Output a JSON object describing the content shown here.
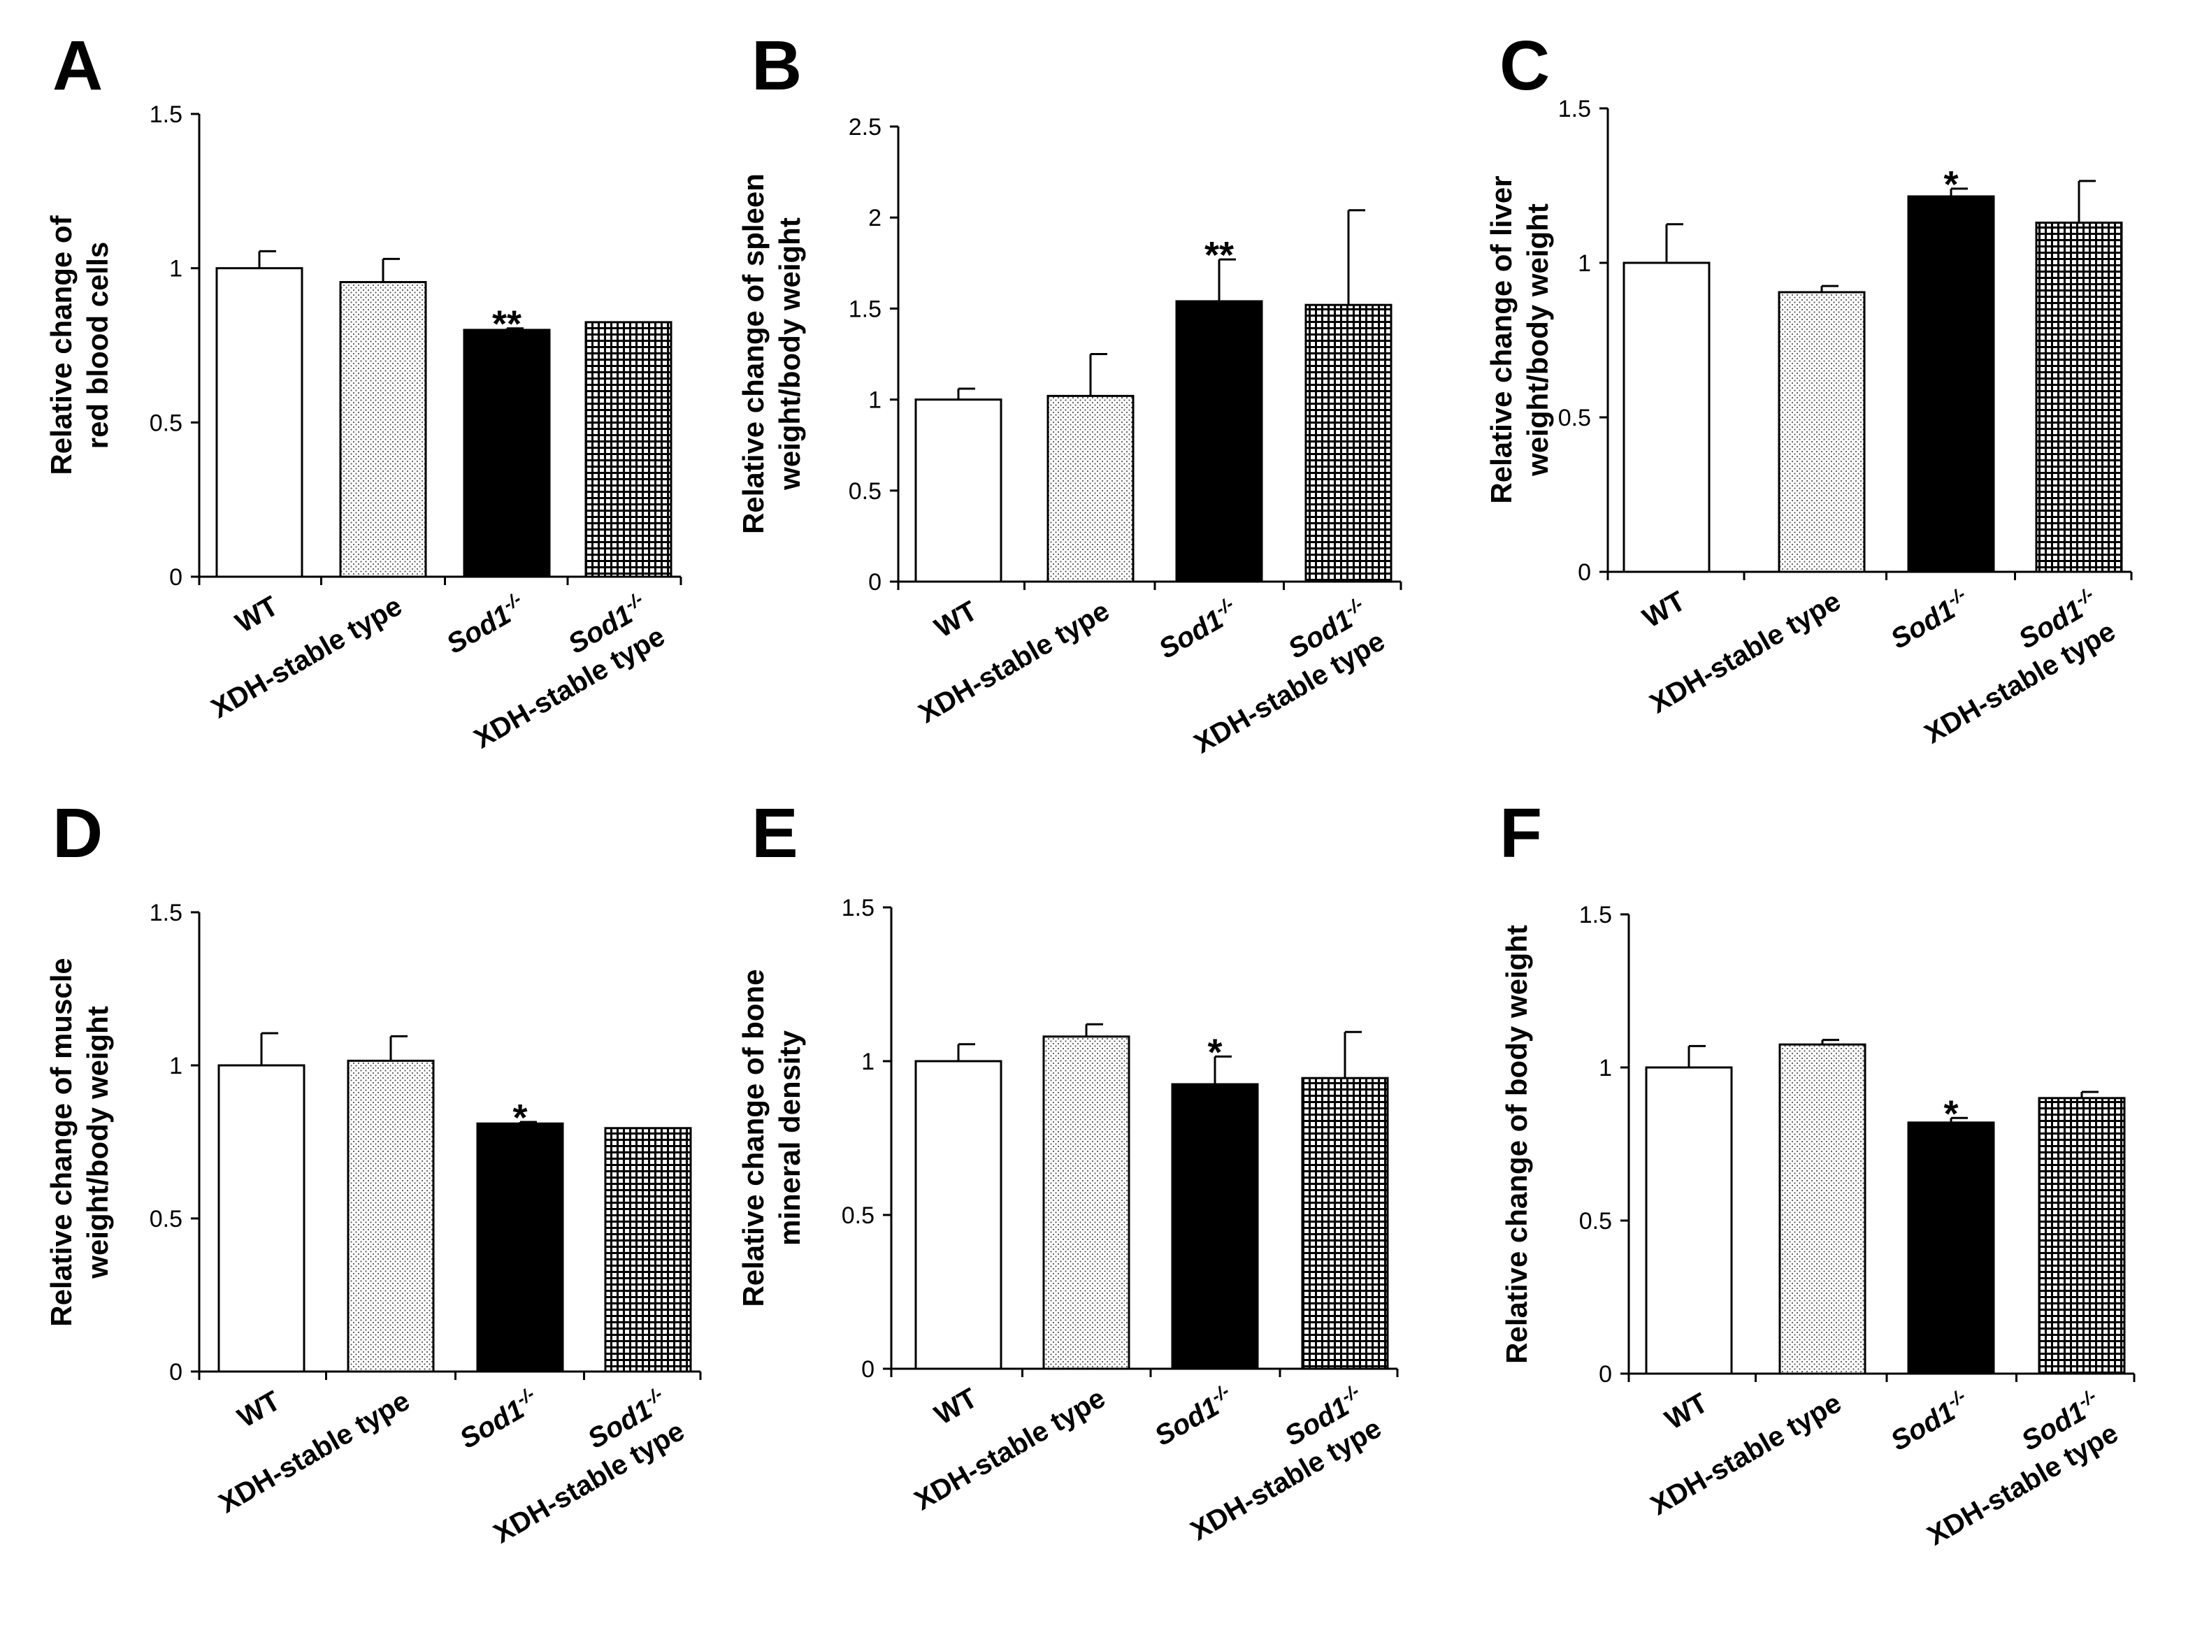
{
  "chart_data": [
    {
      "type": "bar",
      "panel": "A",
      "title": "",
      "ylabel": [
        "Relative change of",
        "red blood cells"
      ],
      "categories": [
        "WT",
        "XDH-stable type",
        "Sod1-/-",
        "Sod1-/- XDH-stable type"
      ],
      "values": [
        1.0,
        0.955,
        0.8,
        0.825
      ],
      "errors": [
        0.055,
        0.075,
        0.005,
        0.0
      ],
      "significance": [
        "",
        "",
        "**",
        ""
      ],
      "ylim": [
        0,
        1.5
      ],
      "yticks": [
        "0",
        "0.5",
        "1",
        "1.5"
      ],
      "patterns": [
        "white",
        "dots",
        "black",
        "grid"
      ]
    },
    {
      "type": "bar",
      "panel": "B",
      "title": "",
      "ylabel": [
        "Relative change of spleen",
        "weight/body weight"
      ],
      "categories": [
        "WT",
        "XDH-stable type",
        "Sod1-/-",
        "Sod1-/- XDH-stable type"
      ],
      "values": [
        1.0,
        1.02,
        1.54,
        1.52
      ],
      "errors": [
        0.06,
        0.23,
        0.23,
        0.52
      ],
      "significance": [
        "",
        "",
        "**",
        ""
      ],
      "ylim": [
        0,
        2.5
      ],
      "yticks": [
        "0",
        "0.5",
        "1",
        "1.5",
        "2",
        "2.5"
      ],
      "patterns": [
        "white",
        "dots",
        "black",
        "grid"
      ]
    },
    {
      "type": "bar",
      "panel": "C",
      "title": "",
      "ylabel": [
        "Relative change of liver",
        "weight/body weight"
      ],
      "categories": [
        "WT",
        "XDH-stable type",
        "Sod1-/-",
        "Sod1-/- XDH-stable type"
      ],
      "values": [
        1.0,
        0.905,
        1.215,
        1.13
      ],
      "errors": [
        0.125,
        0.02,
        0.025,
        0.135
      ],
      "significance": [
        "",
        "",
        "*",
        ""
      ],
      "ylim": [
        0,
        1.5
      ],
      "yticks": [
        "0",
        "0.5",
        "1",
        "1.5"
      ],
      "patterns": [
        "white",
        "dots",
        "black",
        "grid"
      ]
    },
    {
      "type": "bar",
      "panel": "D",
      "title": "",
      "ylabel": [
        "Relative change of muscle",
        "weight/body weight"
      ],
      "categories": [
        "WT",
        "XDH-stable type",
        "Sod1-/-",
        "Sod1-/- XDH-stable type"
      ],
      "values": [
        1.0,
        1.015,
        0.81,
        0.795
      ],
      "errors": [
        0.105,
        0.08,
        0.005,
        0.0
      ],
      "significance": [
        "",
        "",
        "*",
        ""
      ],
      "ylim": [
        0,
        1.5
      ],
      "yticks": [
        "0",
        "0.5",
        "1",
        "1.5"
      ],
      "patterns": [
        "white",
        "dots",
        "black",
        "grid"
      ]
    },
    {
      "type": "bar",
      "panel": "E",
      "title": "",
      "ylabel": [
        "Relative change of bone",
        "mineral  density"
      ],
      "categories": [
        "WT",
        "XDH-stable type",
        "Sod1-/-",
        "Sod1-/- XDH-stable type"
      ],
      "values": [
        1.0,
        1.08,
        0.925,
        0.945
      ],
      "errors": [
        0.055,
        0.04,
        0.09,
        0.15
      ],
      "significance": [
        "",
        "",
        "*",
        ""
      ],
      "ylim": [
        0,
        1.5
      ],
      "yticks": [
        "0",
        "0.5",
        "1",
        "1.5"
      ],
      "patterns": [
        "white",
        "dots",
        "black",
        "grid"
      ]
    },
    {
      "type": "bar",
      "panel": "F",
      "title": "",
      "ylabel": [
        "Relative change of body weight"
      ],
      "categories": [
        "WT",
        "XDH-stable type",
        "Sod1-/-",
        "Sod1-/- XDH-stable type"
      ],
      "values": [
        1.0,
        1.075,
        0.82,
        0.9
      ],
      "errors": [
        0.07,
        0.015,
        0.015,
        0.02
      ],
      "significance": [
        "",
        "",
        "*",
        ""
      ],
      "ylim": [
        0,
        1.5
      ],
      "yticks": [
        "0",
        "0.5",
        "1",
        "1.5"
      ],
      "patterns": [
        "white",
        "dots",
        "black",
        "grid"
      ]
    }
  ],
  "category_labels": {
    "wt": "WT",
    "xdh": "XDH-stable type",
    "sod1_base": "Sod1",
    "sod1_sup": "-/-",
    "xdh_line2": "XDH-stable type"
  },
  "colors": {
    "bar_edge": "#000000",
    "black_bar": "#000000",
    "white_bar": "#ffffff"
  }
}
